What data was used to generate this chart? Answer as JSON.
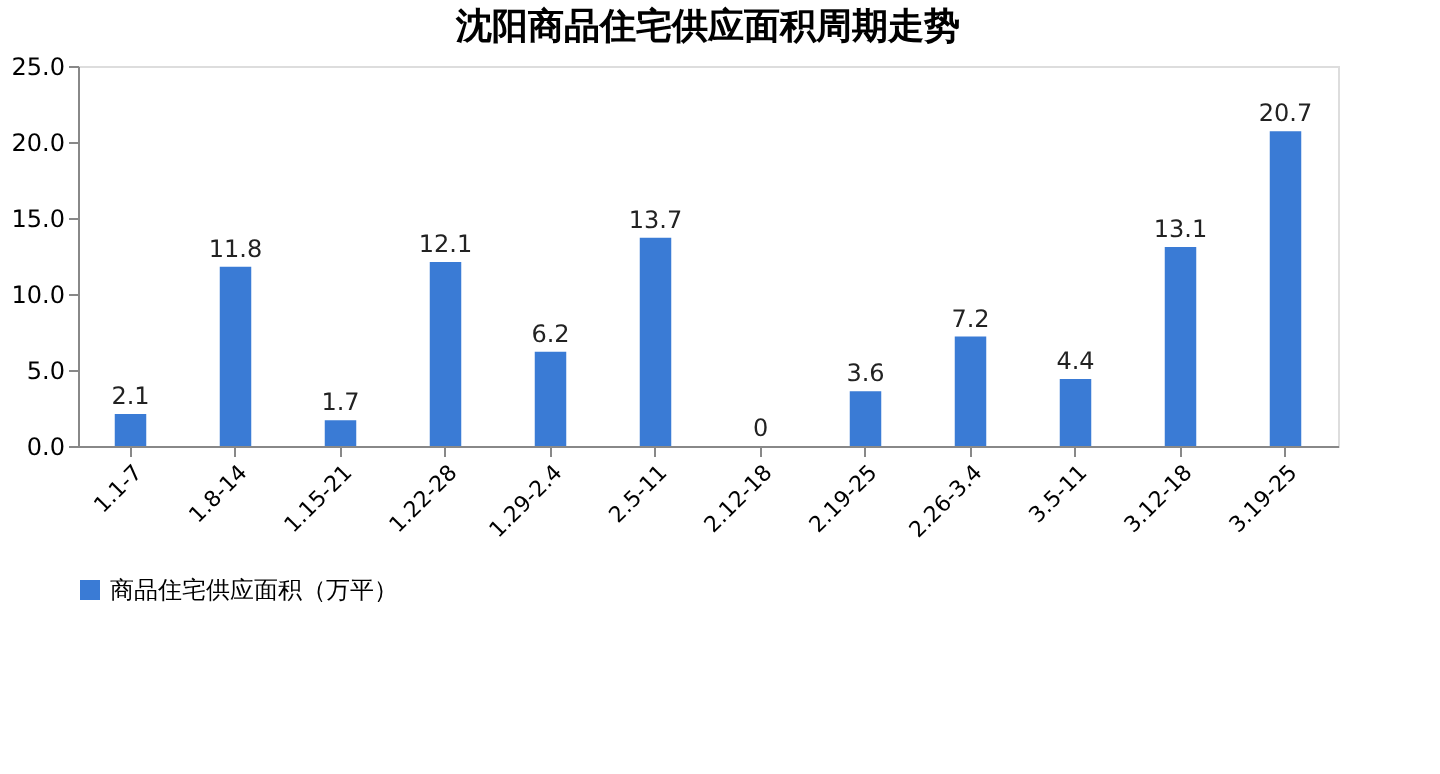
{
  "chart_data": {
    "type": "bar",
    "title": "沈阳商品住宅供应面积周期走势",
    "categories": [
      "1.1-7",
      "1.8-14",
      "1.15-21",
      "1.22-28",
      "1.29-2.4",
      "2.5-11",
      "2.12-18",
      "2.19-25",
      "2.26-3.4",
      "3.5-11",
      "3.12-18",
      "3.19-25"
    ],
    "series": [
      {
        "name": "商品住宅供应面积（万平）",
        "color": "#3a7bd5",
        "values": [
          2.1,
          11.8,
          1.7,
          12.1,
          6.2,
          13.7,
          0,
          3.6,
          7.2,
          4.4,
          13.1,
          20.7
        ]
      }
    ],
    "ylim": [
      0,
      25
    ],
    "yticks": [
      {
        "value": 0,
        "label": "0.0"
      },
      {
        "value": 5,
        "label": "5.0"
      },
      {
        "value": 10,
        "label": "10.0"
      },
      {
        "value": 15,
        "label": "15.0"
      },
      {
        "value": 20,
        "label": "20.0"
      },
      {
        "value": 25,
        "label": "25.0"
      }
    ],
    "data_labels": true,
    "legend": "bottom",
    "grid": false
  }
}
